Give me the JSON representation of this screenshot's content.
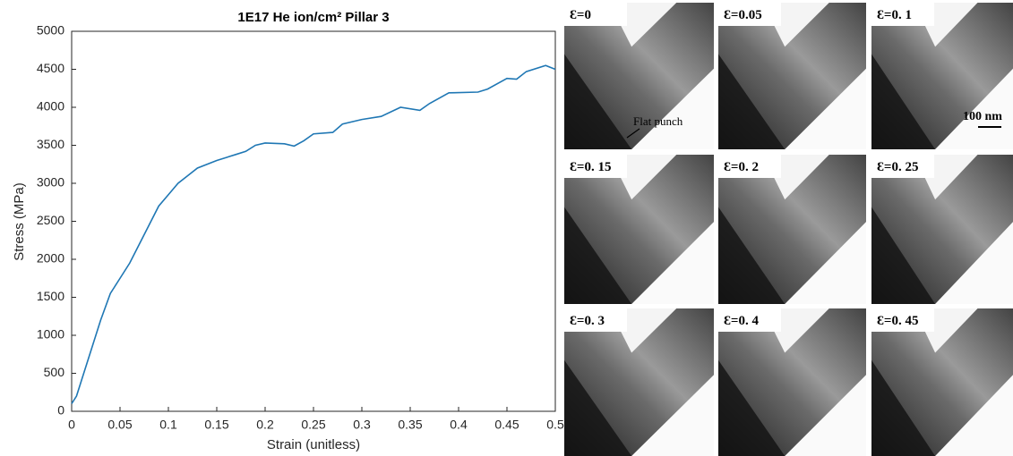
{
  "chart_data": {
    "type": "line",
    "title": "1E17 He ion/cm² Pillar 3",
    "x_label": "Strain (unitless)",
    "y_label": "Stress (MPa)",
    "color": "#1f77b4",
    "x": [
      0,
      0.005,
      0.01,
      0.02,
      0.03,
      0.04,
      0.05,
      0.06,
      0.07,
      0.08,
      0.09,
      0.1,
      0.11,
      0.12,
      0.13,
      0.15,
      0.17,
      0.18,
      0.19,
      0.2,
      0.22,
      0.23,
      0.24,
      0.25,
      0.27,
      0.28,
      0.3,
      0.32,
      0.34,
      0.36,
      0.37,
      0.39,
      0.42,
      0.43,
      0.45,
      0.46,
      0.47,
      0.49,
      0.5
    ],
    "values": [
      100,
      200,
      400,
      800,
      1200,
      1550,
      1750,
      1950,
      2200,
      2450,
      2700,
      2850,
      3000,
      3100,
      3200,
      3300,
      3380,
      3420,
      3500,
      3530,
      3520,
      3490,
      3560,
      3650,
      3670,
      3780,
      3840,
      3880,
      4000,
      3960,
      4050,
      4190,
      4200,
      4240,
      4380,
      4370,
      4470,
      4550,
      4500
    ],
    "xlim": [
      0,
      0.5
    ],
    "xticks": [
      0,
      0.05,
      0.1,
      0.15,
      0.2,
      0.25,
      0.3,
      0.35,
      0.4,
      0.45,
      0.5
    ],
    "ylim": [
      0,
      5000
    ],
    "yticks": [
      0,
      500,
      1000,
      1500,
      2000,
      2500,
      3000,
      3500,
      4000,
      4500,
      5000
    ]
  },
  "panels": [
    "Ɛ=0",
    "Ɛ=0.05",
    "Ɛ=0. 1",
    "Ɛ=0. 15",
    "Ɛ=0. 2",
    "Ɛ=0. 25",
    "Ɛ=0. 3",
    "Ɛ=0. 4",
    "Ɛ=0. 45"
  ],
  "annotations": {
    "flat_punch": "Flat punch",
    "scale_bar": "100 nm"
  }
}
